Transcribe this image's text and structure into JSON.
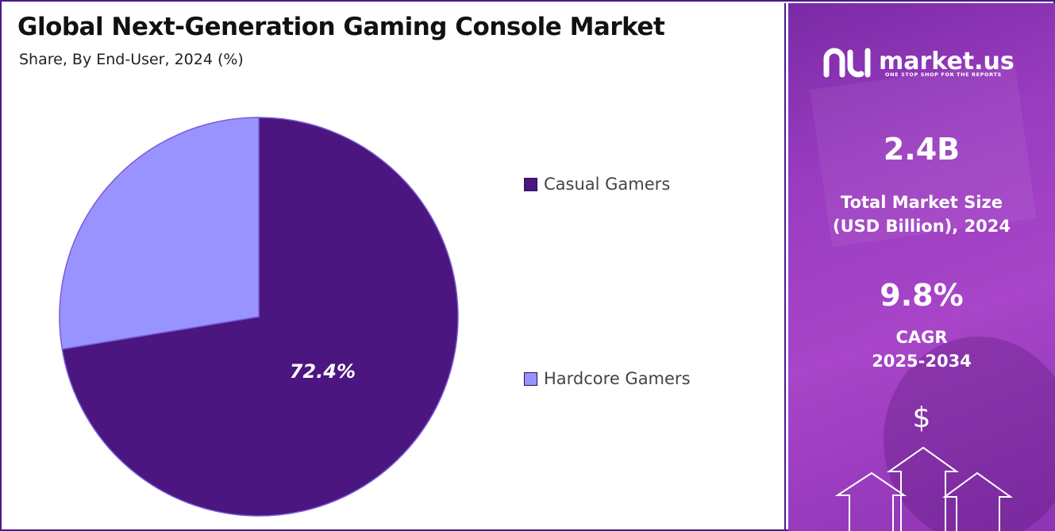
{
  "title": "Global Next-Generation Gaming Console Market",
  "subtitle": "Share, By End-User, 2024 (%)",
  "chart_data": {
    "type": "pie",
    "title": "Global Next-Generation Gaming Console Market",
    "subtitle": "Share, By End-User, 2024 (%)",
    "categories": [
      "Casual Gamers",
      "Hardcore Gamers"
    ],
    "values": [
      72.4,
      27.6
    ],
    "labels": [
      "72.4%",
      ""
    ],
    "colors": [
      "#4b1680",
      "#9993ff"
    ],
    "legend_position": "right"
  },
  "legend": [
    {
      "label": "Casual Gamers",
      "color": "#4b1680"
    },
    {
      "label": "Hardcore Gamers",
      "color": "#9993ff"
    }
  ],
  "brand": {
    "name": "market.us",
    "tagline": "ONE STOP SHOP FOR THE REPORTS",
    "logo_icon": "market-us-logo-icon"
  },
  "stats": {
    "market_size_value": "2.4B",
    "market_size_label_line1": "Total Market Size",
    "market_size_label_line2": "(USD Billion), 2024",
    "cagr_value": "9.8%",
    "cagr_label_line1": "CAGR",
    "cagr_label_line2": "2025-2034"
  },
  "icons": {
    "dollar_symbol": "$",
    "growth_arrows": "growth-arrows-icon"
  }
}
